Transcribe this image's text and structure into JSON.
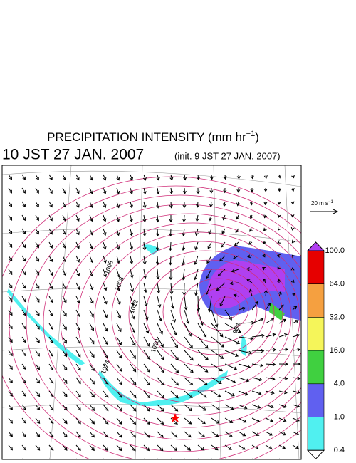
{
  "header": {
    "title": "PRECIPITATION INTENSITY (mm hr",
    "title_sup": "−1",
    "title_end": ")",
    "valid_time": "10 JST 27 JAN. 2007",
    "init_time": "(init. 9 JST 27 JAN. 2007)"
  },
  "wind_reference": {
    "label": "20 m s",
    "sup": "−1"
  },
  "contour_labels": [
    "1008",
    "1008",
    "1012",
    "1020",
    "1024",
    "994"
  ],
  "colorbar": {
    "levels": [
      "100.0",
      "64.0",
      "32.0",
      "16.0",
      "4.0",
      "1.0",
      "0.4"
    ],
    "colors": [
      "#b040f0",
      "#e60000",
      "#f5a040",
      "#f5f55a",
      "#40d040",
      "#6060f0",
      "#50f0f0",
      "#ffffff"
    ]
  }
}
